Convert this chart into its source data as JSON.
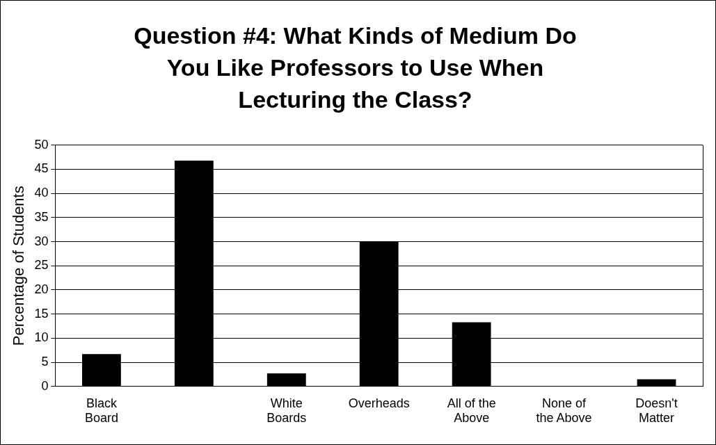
{
  "chart_data": {
    "type": "bar",
    "title": "Question #4: What Kinds of Medium Do You Like Professors to Use When Lecturing the Class?",
    "ylabel": "Percentage of Students",
    "categories": [
      "Black Board",
      null,
      "White Boards",
      "Overheads",
      "All of the Above",
      "None of the Above",
      "Doesn't Matter"
    ],
    "values": [
      6.7,
      46.8,
      2.7,
      30,
      13.3,
      0,
      1.5
    ],
    "color": "#000000",
    "ylim": [
      0,
      50
    ],
    "yticks": [
      0,
      5,
      10,
      15,
      20,
      25,
      30,
      35,
      40,
      45,
      50
    ],
    "grid": "y",
    "legend": false
  }
}
